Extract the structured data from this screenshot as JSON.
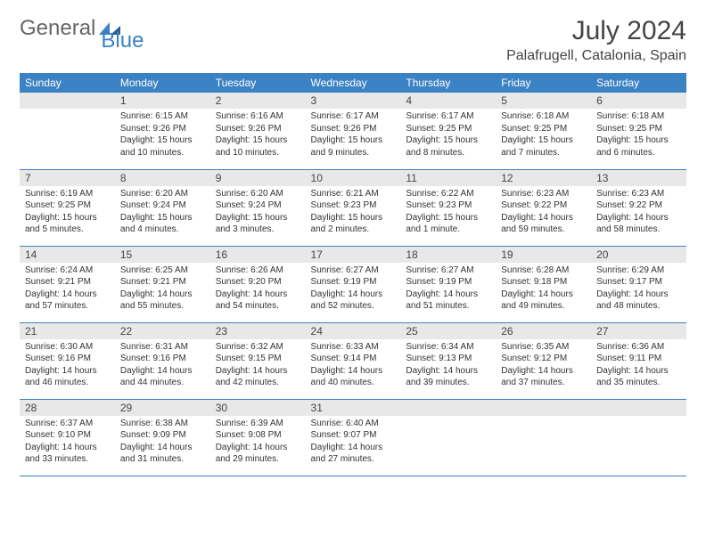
{
  "logo": {
    "text1": "General",
    "text2": "Blue"
  },
  "title": "July 2024",
  "location": "Palafrugell, Catalonia, Spain",
  "colors": {
    "header_bg": "#3b82c4",
    "header_text": "#ffffff",
    "daynum_bg": "#e8e8e8",
    "border": "#3b82c4",
    "text": "#333333"
  },
  "weekdays": [
    "Sunday",
    "Monday",
    "Tuesday",
    "Wednesday",
    "Thursday",
    "Friday",
    "Saturday"
  ],
  "weeks": [
    [
      null,
      {
        "n": "1",
        "sr": "Sunrise: 6:15 AM",
        "ss": "Sunset: 9:26 PM",
        "dl": "Daylight: 15 hours and 10 minutes."
      },
      {
        "n": "2",
        "sr": "Sunrise: 6:16 AM",
        "ss": "Sunset: 9:26 PM",
        "dl": "Daylight: 15 hours and 10 minutes."
      },
      {
        "n": "3",
        "sr": "Sunrise: 6:17 AM",
        "ss": "Sunset: 9:26 PM",
        "dl": "Daylight: 15 hours and 9 minutes."
      },
      {
        "n": "4",
        "sr": "Sunrise: 6:17 AM",
        "ss": "Sunset: 9:25 PM",
        "dl": "Daylight: 15 hours and 8 minutes."
      },
      {
        "n": "5",
        "sr": "Sunrise: 6:18 AM",
        "ss": "Sunset: 9:25 PM",
        "dl": "Daylight: 15 hours and 7 minutes."
      },
      {
        "n": "6",
        "sr": "Sunrise: 6:18 AM",
        "ss": "Sunset: 9:25 PM",
        "dl": "Daylight: 15 hours and 6 minutes."
      }
    ],
    [
      {
        "n": "7",
        "sr": "Sunrise: 6:19 AM",
        "ss": "Sunset: 9:25 PM",
        "dl": "Daylight: 15 hours and 5 minutes."
      },
      {
        "n": "8",
        "sr": "Sunrise: 6:20 AM",
        "ss": "Sunset: 9:24 PM",
        "dl": "Daylight: 15 hours and 4 minutes."
      },
      {
        "n": "9",
        "sr": "Sunrise: 6:20 AM",
        "ss": "Sunset: 9:24 PM",
        "dl": "Daylight: 15 hours and 3 minutes."
      },
      {
        "n": "10",
        "sr": "Sunrise: 6:21 AM",
        "ss": "Sunset: 9:23 PM",
        "dl": "Daylight: 15 hours and 2 minutes."
      },
      {
        "n": "11",
        "sr": "Sunrise: 6:22 AM",
        "ss": "Sunset: 9:23 PM",
        "dl": "Daylight: 15 hours and 1 minute."
      },
      {
        "n": "12",
        "sr": "Sunrise: 6:23 AM",
        "ss": "Sunset: 9:22 PM",
        "dl": "Daylight: 14 hours and 59 minutes."
      },
      {
        "n": "13",
        "sr": "Sunrise: 6:23 AM",
        "ss": "Sunset: 9:22 PM",
        "dl": "Daylight: 14 hours and 58 minutes."
      }
    ],
    [
      {
        "n": "14",
        "sr": "Sunrise: 6:24 AM",
        "ss": "Sunset: 9:21 PM",
        "dl": "Daylight: 14 hours and 57 minutes."
      },
      {
        "n": "15",
        "sr": "Sunrise: 6:25 AM",
        "ss": "Sunset: 9:21 PM",
        "dl": "Daylight: 14 hours and 55 minutes."
      },
      {
        "n": "16",
        "sr": "Sunrise: 6:26 AM",
        "ss": "Sunset: 9:20 PM",
        "dl": "Daylight: 14 hours and 54 minutes."
      },
      {
        "n": "17",
        "sr": "Sunrise: 6:27 AM",
        "ss": "Sunset: 9:19 PM",
        "dl": "Daylight: 14 hours and 52 minutes."
      },
      {
        "n": "18",
        "sr": "Sunrise: 6:27 AM",
        "ss": "Sunset: 9:19 PM",
        "dl": "Daylight: 14 hours and 51 minutes."
      },
      {
        "n": "19",
        "sr": "Sunrise: 6:28 AM",
        "ss": "Sunset: 9:18 PM",
        "dl": "Daylight: 14 hours and 49 minutes."
      },
      {
        "n": "20",
        "sr": "Sunrise: 6:29 AM",
        "ss": "Sunset: 9:17 PM",
        "dl": "Daylight: 14 hours and 48 minutes."
      }
    ],
    [
      {
        "n": "21",
        "sr": "Sunrise: 6:30 AM",
        "ss": "Sunset: 9:16 PM",
        "dl": "Daylight: 14 hours and 46 minutes."
      },
      {
        "n": "22",
        "sr": "Sunrise: 6:31 AM",
        "ss": "Sunset: 9:16 PM",
        "dl": "Daylight: 14 hours and 44 minutes."
      },
      {
        "n": "23",
        "sr": "Sunrise: 6:32 AM",
        "ss": "Sunset: 9:15 PM",
        "dl": "Daylight: 14 hours and 42 minutes."
      },
      {
        "n": "24",
        "sr": "Sunrise: 6:33 AM",
        "ss": "Sunset: 9:14 PM",
        "dl": "Daylight: 14 hours and 40 minutes."
      },
      {
        "n": "25",
        "sr": "Sunrise: 6:34 AM",
        "ss": "Sunset: 9:13 PM",
        "dl": "Daylight: 14 hours and 39 minutes."
      },
      {
        "n": "26",
        "sr": "Sunrise: 6:35 AM",
        "ss": "Sunset: 9:12 PM",
        "dl": "Daylight: 14 hours and 37 minutes."
      },
      {
        "n": "27",
        "sr": "Sunrise: 6:36 AM",
        "ss": "Sunset: 9:11 PM",
        "dl": "Daylight: 14 hours and 35 minutes."
      }
    ],
    [
      {
        "n": "28",
        "sr": "Sunrise: 6:37 AM",
        "ss": "Sunset: 9:10 PM",
        "dl": "Daylight: 14 hours and 33 minutes."
      },
      {
        "n": "29",
        "sr": "Sunrise: 6:38 AM",
        "ss": "Sunset: 9:09 PM",
        "dl": "Daylight: 14 hours and 31 minutes."
      },
      {
        "n": "30",
        "sr": "Sunrise: 6:39 AM",
        "ss": "Sunset: 9:08 PM",
        "dl": "Daylight: 14 hours and 29 minutes."
      },
      {
        "n": "31",
        "sr": "Sunrise: 6:40 AM",
        "ss": "Sunset: 9:07 PM",
        "dl": "Daylight: 14 hours and 27 minutes."
      },
      null,
      null,
      null
    ]
  ]
}
